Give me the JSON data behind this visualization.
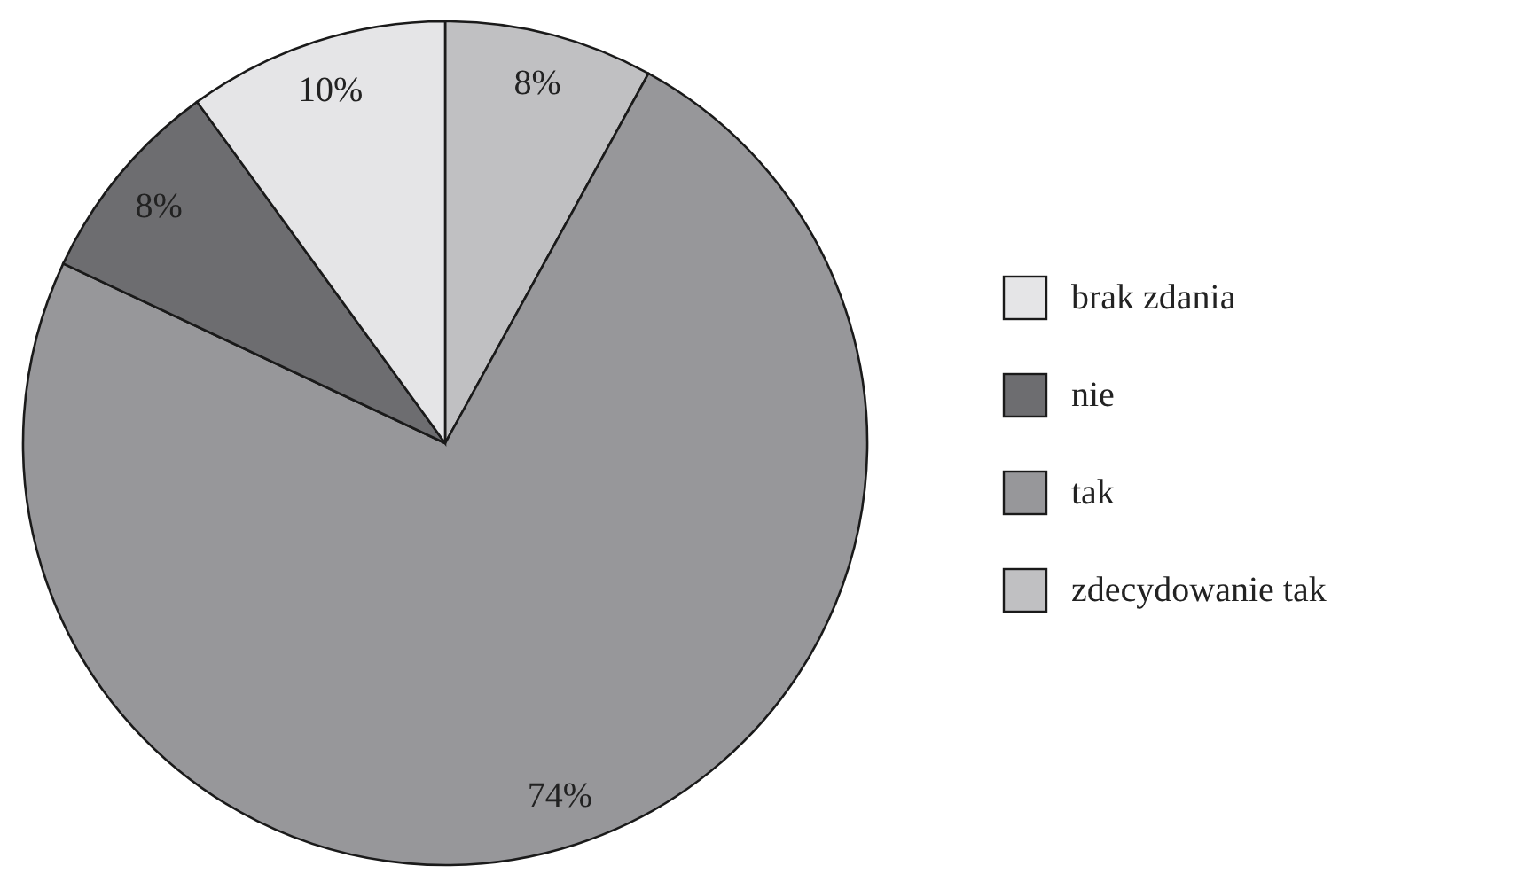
{
  "chart_data": {
    "type": "pie",
    "categories": [
      "zdecydowanie tak",
      "tak",
      "nie",
      "brak zdania"
    ],
    "values": [
      8,
      74,
      8,
      10
    ],
    "colors": [
      "#c0c0c2",
      "#97979a",
      "#6d6d70",
      "#e5e5e7"
    ],
    "data_labels": true,
    "value_labels": [
      "8%",
      "74%",
      "8%",
      "10%"
    ],
    "legend": "right"
  }
}
